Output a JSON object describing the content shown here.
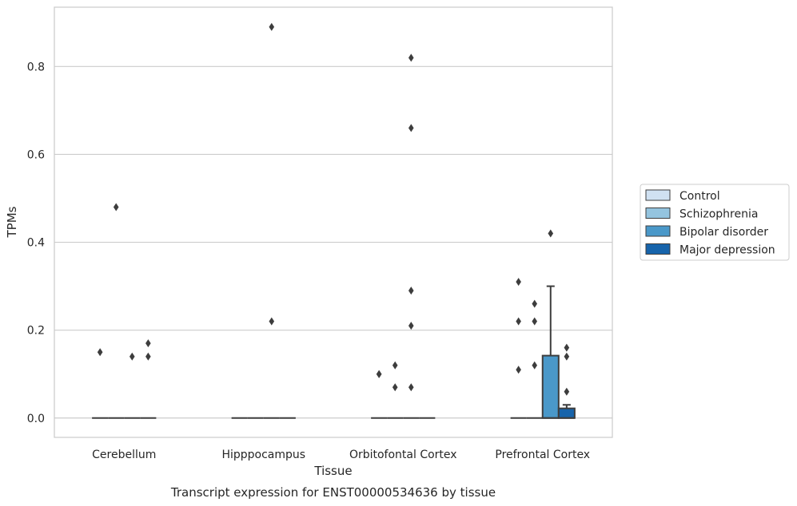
{
  "chart_data": {
    "type": "box",
    "title": "Transcript expression for ENST00000534636 by tissue",
    "xlabel": "Tissue",
    "ylabel": "TPMs",
    "categories": [
      "Cerebellum",
      "Hipppocampus",
      "Orbitofontal Cortex",
      "Prefrontal Cortex"
    ],
    "ylim": [
      -0.044,
      0.935
    ],
    "yticks": [
      "0.0",
      "0.2",
      "0.4",
      "0.6",
      "0.8"
    ],
    "ytick_values": [
      0.0,
      0.2,
      0.4,
      0.6,
      0.8
    ],
    "grid": "horizontal",
    "legend_placement": "right",
    "series": [
      {
        "name": "Control",
        "color": "#d0e1f2",
        "boxes": [
          {
            "q1": 0,
            "median": 0,
            "q3": 0,
            "whisker_low": 0,
            "whisker_high": 0,
            "outliers": [
              0.15
            ]
          },
          {
            "q1": 0,
            "median": 0,
            "q3": 0,
            "whisker_low": 0,
            "whisker_high": 0,
            "outliers": []
          },
          {
            "q1": 0,
            "median": 0,
            "q3": 0,
            "whisker_low": 0,
            "whisker_high": 0,
            "outliers": [
              0.1,
              0.1
            ]
          },
          {
            "q1": 0,
            "median": 0,
            "q3": 0,
            "whisker_low": 0,
            "whisker_high": 0,
            "outliers": [
              0.31,
              0.22,
              0.11
            ]
          }
        ]
      },
      {
        "name": "Schizophrenia",
        "color": "#94c4df",
        "boxes": [
          {
            "q1": 0,
            "median": 0,
            "q3": 0,
            "whisker_low": 0,
            "whisker_high": 0,
            "outliers": [
              0.48
            ]
          },
          {
            "q1": 0,
            "median": 0,
            "q3": 0,
            "whisker_low": 0,
            "whisker_high": 0,
            "outliers": []
          },
          {
            "q1": 0,
            "median": 0,
            "q3": 0,
            "whisker_low": 0,
            "whisker_high": 0,
            "outliers": [
              0.12,
              0.07
            ]
          },
          {
            "q1": 0,
            "median": 0,
            "q3": 0,
            "whisker_low": 0,
            "whisker_high": 0,
            "outliers": [
              0.26,
              0.22,
              0.12
            ]
          }
        ]
      },
      {
        "name": "Bipolar disorder",
        "color": "#4a98c9",
        "boxes": [
          {
            "q1": 0,
            "median": 0,
            "q3": 0,
            "whisker_low": 0,
            "whisker_high": 0,
            "outliers": [
              0.14
            ]
          },
          {
            "q1": 0,
            "median": 0,
            "q3": 0,
            "whisker_low": 0,
            "whisker_high": 0,
            "outliers": [
              0.89,
              0.22
            ]
          },
          {
            "q1": 0,
            "median": 0,
            "q3": 0,
            "whisker_low": 0,
            "whisker_high": 0,
            "outliers": [
              0.82,
              0.66,
              0.29,
              0.21,
              0.07
            ]
          },
          {
            "q1": 0,
            "median": 0,
            "q3": 0.142,
            "whisker_low": 0,
            "whisker_high": 0.3,
            "outliers": [
              0.42
            ]
          }
        ]
      },
      {
        "name": "Major depression",
        "color": "#1764ab",
        "boxes": [
          {
            "q1": 0,
            "median": 0,
            "q3": 0,
            "whisker_low": 0,
            "whisker_high": 0,
            "outliers": [
              0.17,
              0.14
            ]
          },
          {
            "q1": 0,
            "median": 0,
            "q3": 0,
            "whisker_low": 0,
            "whisker_high": 0,
            "outliers": []
          },
          {
            "q1": 0,
            "median": 0,
            "q3": 0,
            "whisker_low": 0,
            "whisker_high": 0,
            "outliers": []
          },
          {
            "q1": 0,
            "median": 0,
            "q3": 0.022,
            "whisker_low": 0,
            "whisker_high": 0.03,
            "outliers": [
              0.16,
              0.14,
              0.06
            ]
          }
        ]
      }
    ],
    "colors": {
      "grid": "#cccccc",
      "frame": "#cccccc",
      "box_edge": "#3d3d3d",
      "outlier": "#3d3d3d"
    }
  }
}
